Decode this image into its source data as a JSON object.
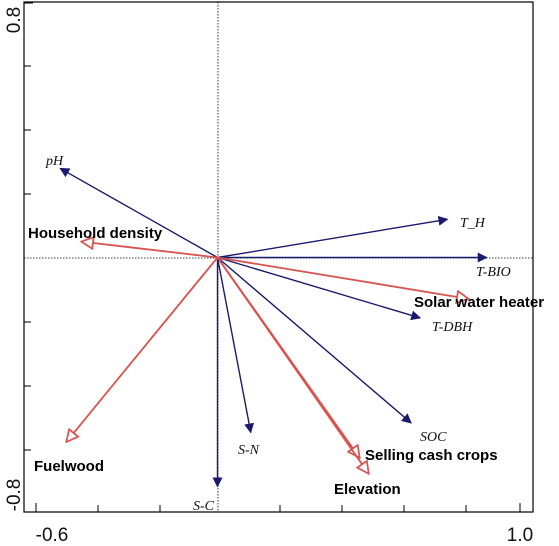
{
  "chart_data": {
    "type": "biplot",
    "xlim": [
      -0.6,
      1.0
    ],
    "ylim": [
      -0.8,
      0.8
    ],
    "x_tick_labels": [
      "-0.6",
      "1.0"
    ],
    "y_tick_labels": [
      "0.8",
      "-0.8"
    ],
    "response_color": "#1a1a6e",
    "explanatory_color": "#d9534f",
    "response_variables": [
      {
        "label": "pH",
        "x": -0.52,
        "y": 0.28
      },
      {
        "label": "T_H",
        "x": 0.76,
        "y": 0.12
      },
      {
        "label": "T-BIO",
        "x": 0.89,
        "y": 0.0
      },
      {
        "label": "T-DBH",
        "x": 0.67,
        "y": -0.19
      },
      {
        "label": "SOC",
        "x": 0.64,
        "y": -0.52
      },
      {
        "label": "S-N",
        "x": 0.11,
        "y": -0.55
      },
      {
        "label": "S-C",
        "x": 0.0,
        "y": -0.72
      }
    ],
    "explanatory_variables": [
      {
        "label": "Household density",
        "x": -0.45,
        "y": 0.05
      },
      {
        "label": "Solar water heater",
        "x": 0.83,
        "y": -0.13
      },
      {
        "label": "Fuelwood",
        "x": -0.5,
        "y": -0.58
      },
      {
        "label": "Selling cash crops",
        "x": 0.47,
        "y": -0.63
      },
      {
        "label": "Elevation",
        "x": 0.5,
        "y": -0.68
      }
    ]
  }
}
